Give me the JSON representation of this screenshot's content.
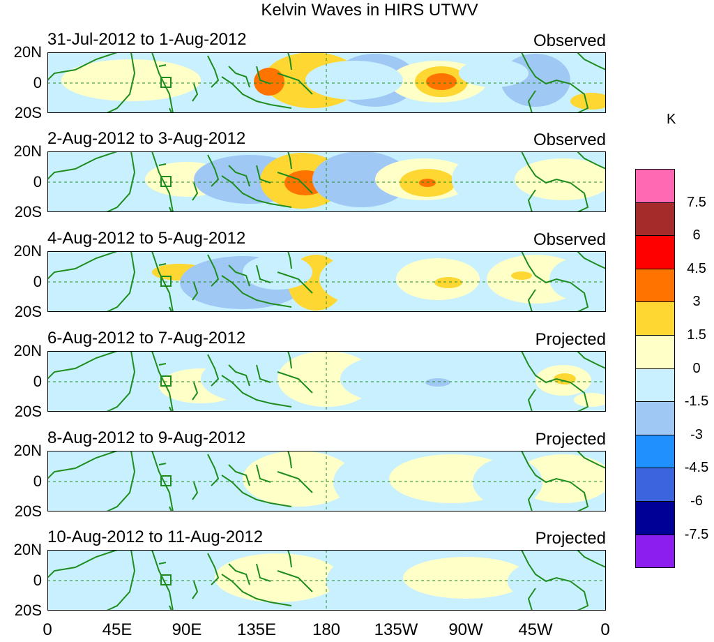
{
  "title": "Kelvin Waves in HIRS UTWV",
  "panels": [
    {
      "date": "31-Jul-2012 to 1-Aug-2012",
      "type": "Observed"
    },
    {
      "date": "2-Aug-2012 to 3-Aug-2012",
      "type": "Observed"
    },
    {
      "date": "4-Aug-2012 to 5-Aug-2012",
      "type": "Observed"
    },
    {
      "date": "6-Aug-2012 to 7-Aug-2012",
      "type": "Projected"
    },
    {
      "date": "8-Aug-2012 to 9-Aug-2012",
      "type": "Projected"
    },
    {
      "date": "10-Aug-2012 to 11-Aug-2012",
      "type": "Projected"
    }
  ],
  "lat_labels": {
    "north": "20N",
    "equator": "0",
    "south": "20S"
  },
  "lon_labels": [
    "0",
    "45E",
    "90E",
    "135E",
    "180",
    "135W",
    "90W",
    "45W",
    "0"
  ],
  "colorbar": {
    "unit": "K",
    "ticks": [
      "7.5",
      "6",
      "4.5",
      "3",
      "1.5",
      "0",
      "-1.5",
      "-3",
      "-4.5",
      "-6",
      "-7.5"
    ],
    "colors": [
      "#ff69b4",
      "#a52a2a",
      "#ff0000",
      "#ff7400",
      "#ffd732",
      "#ffffc8",
      "#c8f0ff",
      "#a0c8f5",
      "#2090ff",
      "#3c64dc",
      "#000096",
      "#8c1ef0"
    ]
  },
  "colors": {
    "positive_1": "#ffffc8",
    "positive_2": "#ffd732",
    "positive_3": "#ff7400",
    "negative_1": "#c8f0ff",
    "negative_2": "#a0c8f5",
    "negative_3": "#2090ff",
    "coast": "#1e8c1e",
    "equator_line": "#228b22"
  }
}
